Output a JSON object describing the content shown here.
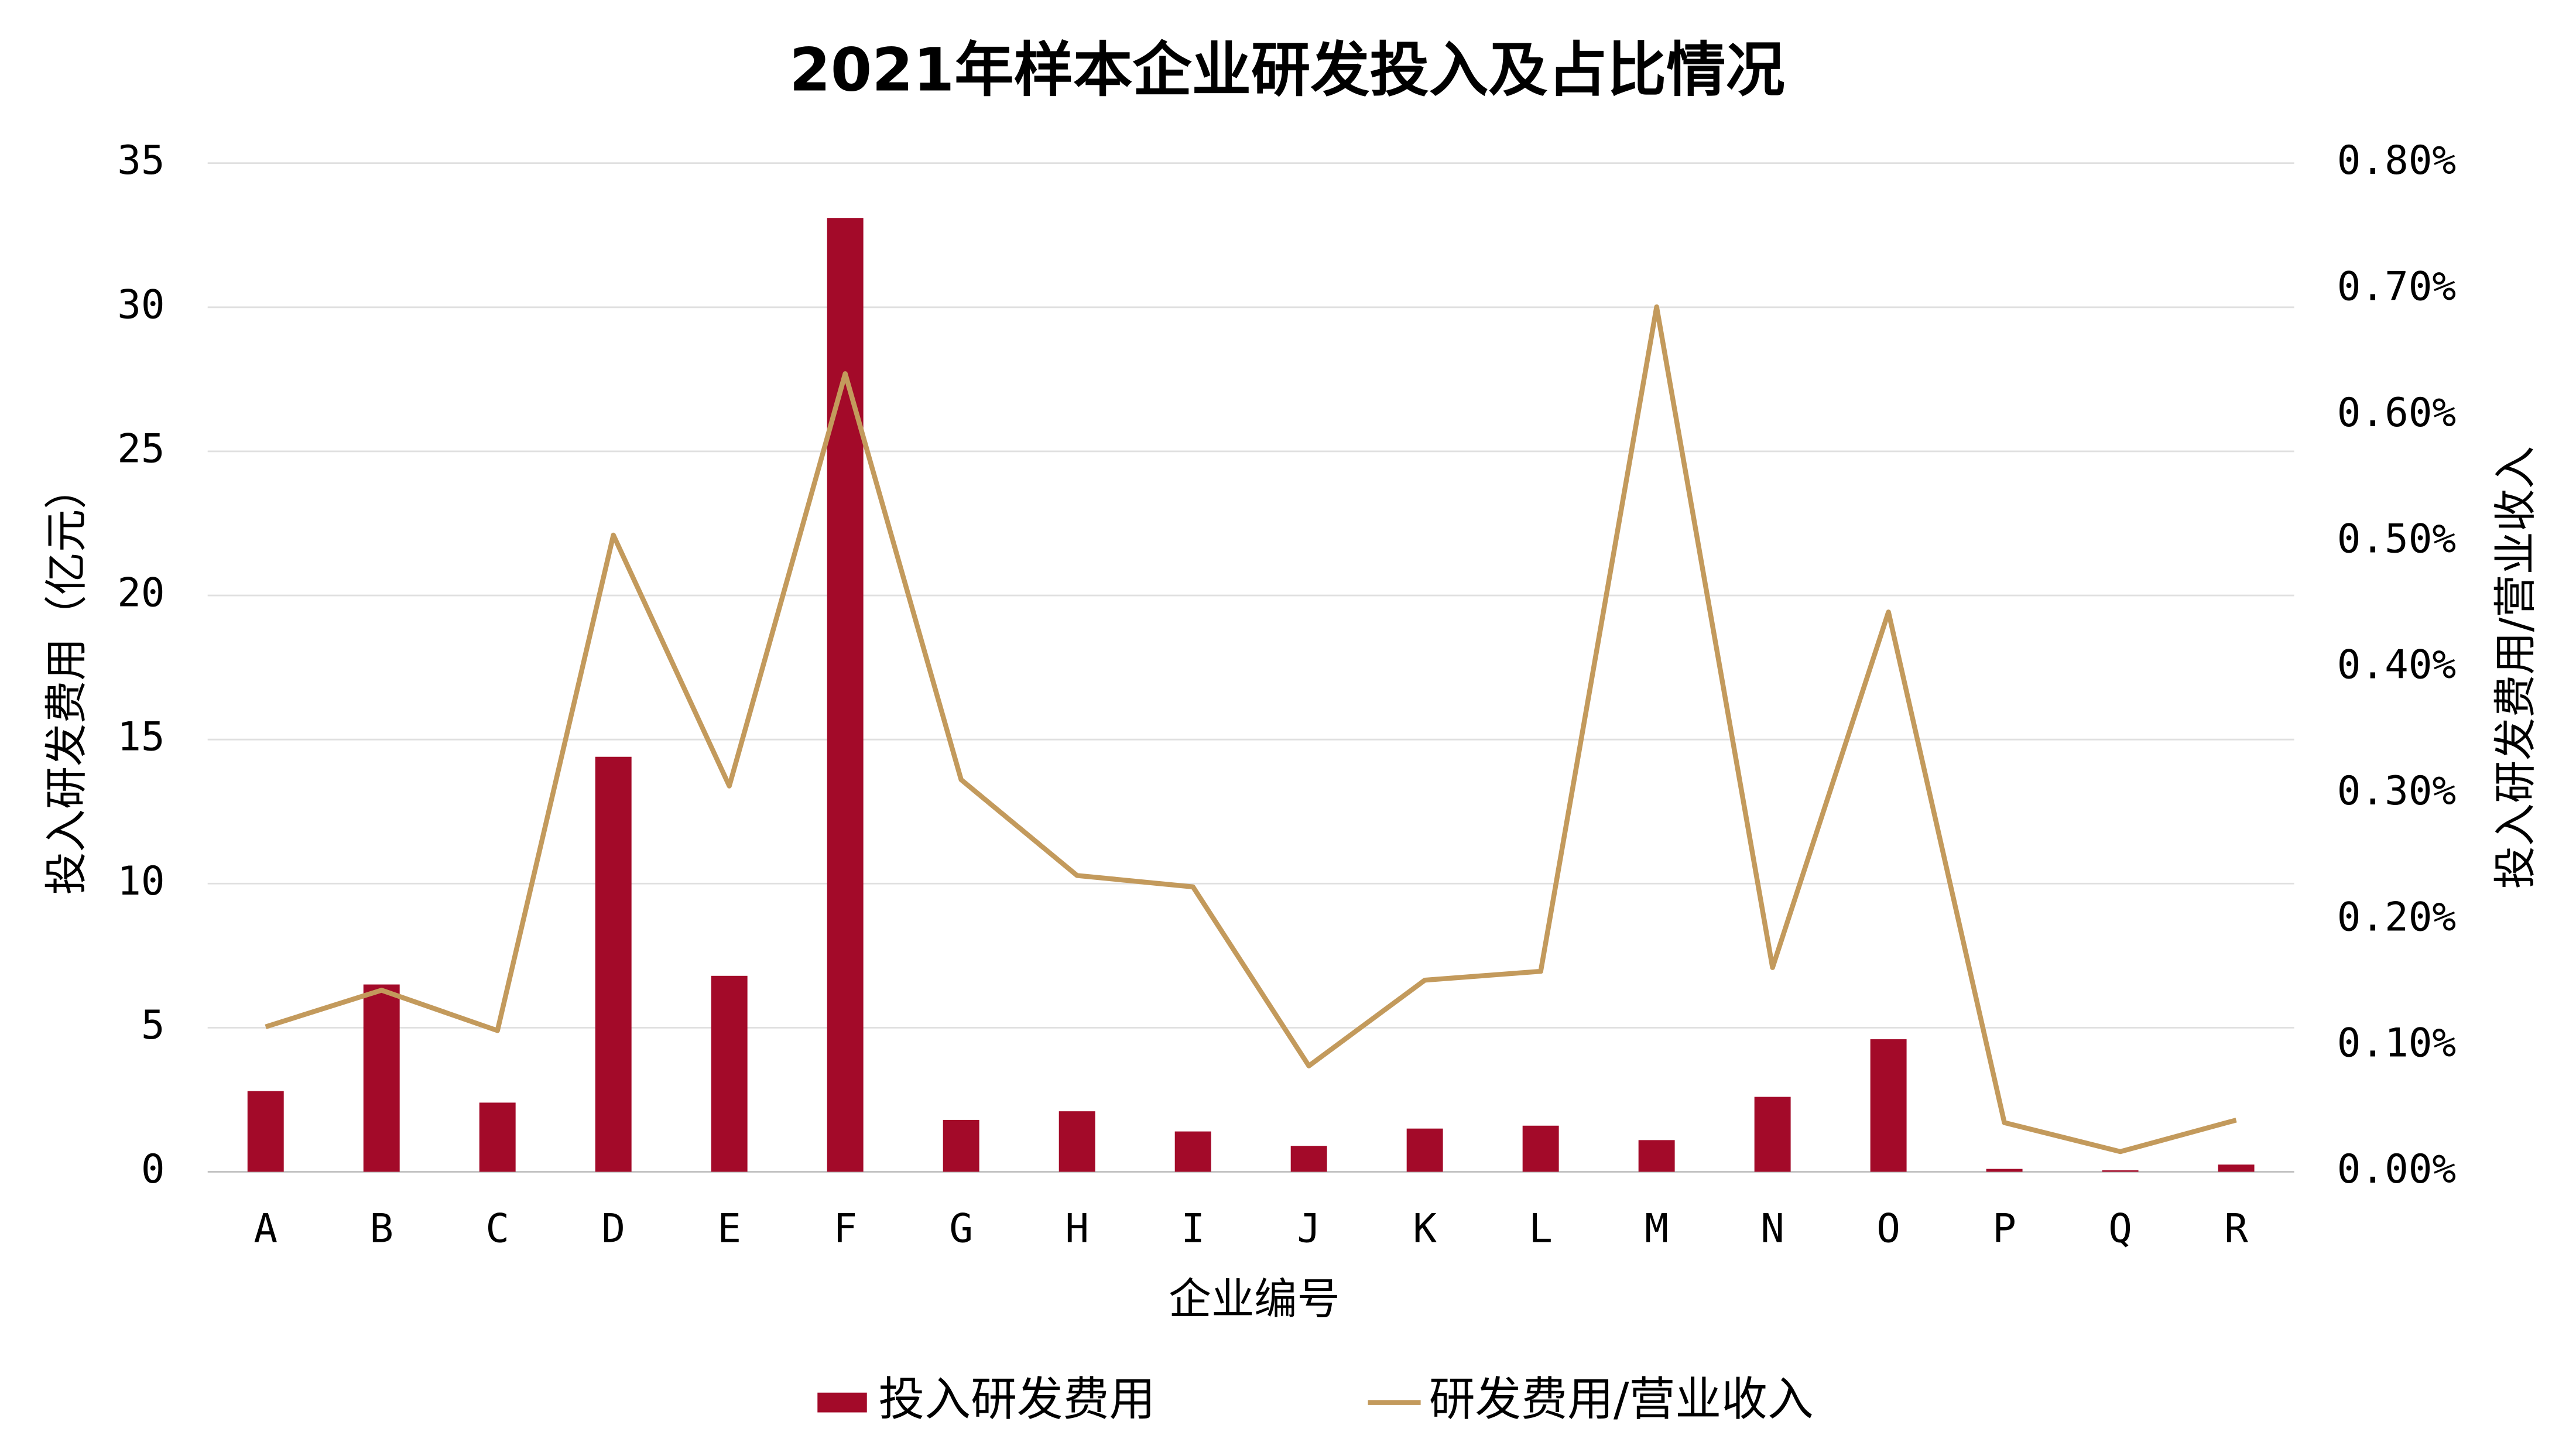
{
  "chart_data": {
    "type": "bar",
    "title": "2021年样本企业研发投入及占比情况",
    "x_label": "企业编号",
    "y_label": "投入研发费用（亿元）",
    "y2_label": "投入研发费用/营业收入",
    "categories": [
      "A",
      "B",
      "C",
      "D",
      "E",
      "F",
      "G",
      "H",
      "I",
      "J",
      "K",
      "L",
      "M",
      "N",
      "O",
      "P",
      "Q",
      "R"
    ],
    "series": [
      {
        "name": "投入研发费用",
        "type": "bar",
        "color": "#a30a29",
        "values": [
          2.8,
          6.5,
          2.4,
          14.4,
          6.8,
          33.1,
          1.8,
          2.1,
          1.4,
          0.9,
          1.5,
          1.6,
          1.1,
          2.6,
          4.6,
          0.1,
          0.05,
          0.25
        ]
      },
      {
        "name": "研发费用/营业收入",
        "type": "line",
        "axis": "y2",
        "color": "#c39a5c",
        "values": [
          0.115,
          0.144,
          0.112,
          0.505,
          0.306,
          0.633,
          0.311,
          0.235,
          0.226,
          0.084,
          0.152,
          0.159,
          0.686,
          0.162,
          0.444,
          0.039,
          0.016,
          0.041
        ]
      }
    ],
    "ylim": [
      0,
      35
    ],
    "yticks": [
      0,
      5,
      10,
      15,
      20,
      25,
      30,
      35
    ],
    "y2lim": [
      0,
      0.8
    ],
    "y2ticks": [
      {
        "value": 0,
        "label": "0.00%"
      },
      {
        "value": 0.1,
        "label": "0.10%"
      },
      {
        "value": 0.2,
        "label": "0.20%"
      },
      {
        "value": 0.3,
        "label": "0.30%"
      },
      {
        "value": 0.4,
        "label": "0.40%"
      },
      {
        "value": 0.5,
        "label": "0.50%"
      },
      {
        "value": 0.6,
        "label": "0.60%"
      },
      {
        "value": 0.7,
        "label": "0.70%"
      },
      {
        "value": 0.8,
        "label": "0.80%"
      }
    ],
    "grid": true,
    "legend": "bottom"
  }
}
